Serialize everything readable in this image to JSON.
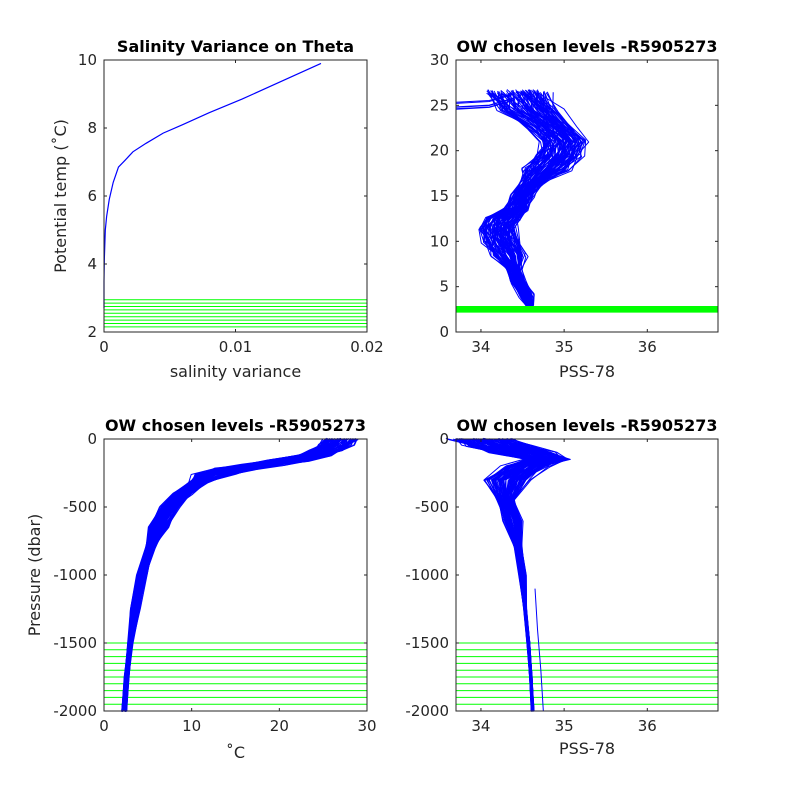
{
  "colors": {
    "profile": "#0000ff",
    "levels": "#00ff00",
    "axis": "#262626",
    "background": "#ffffff"
  },
  "chart_data": [
    {
      "id": "p1",
      "type": "line",
      "title": "Salinity Variance on Theta",
      "xlabel": "salinity variance",
      "ylabel": "Potential temp (˚C)",
      "xlim": [
        0,
        0.02
      ],
      "ylim": [
        2,
        10
      ],
      "xticks": [
        0,
        0.01,
        0.02
      ],
      "xtick_labels": [
        "0",
        "0.01",
        "0.02"
      ],
      "yticks": [
        2,
        4,
        6,
        8,
        10
      ],
      "ytick_labels": [
        "2",
        "4",
        "6",
        "8",
        "10"
      ],
      "series": [
        {
          "x": [
            0.0,
            0.0,
            3e-05,
            0.0001,
            0.0002,
            0.0004,
            0.0007,
            0.0011,
            0.0016,
            0.0022,
            0.0032,
            0.0045,
            0.006,
            0.008,
            0.0105,
            0.0125,
            0.0145,
            0.0165
          ],
          "y": [
            2.7,
            3.5,
            4.2,
            5.0,
            5.4,
            5.9,
            6.4,
            6.85,
            7.05,
            7.3,
            7.55,
            7.85,
            8.1,
            8.45,
            8.85,
            9.2,
            9.55,
            9.9
          ]
        }
      ],
      "levels": [
        2.15,
        2.25,
        2.35,
        2.45,
        2.55,
        2.65,
        2.75,
        2.85,
        2.95
      ]
    },
    {
      "id": "p2",
      "type": "line",
      "title": "OW chosen levels -R5905273",
      "xlabel": "PSS-78",
      "ylabel": "",
      "xlim": [
        33.7,
        36.85
      ],
      "ylim": [
        0,
        30
      ],
      "xticks": [
        34,
        35,
        36
      ],
      "xtick_labels": [
        "34",
        "35",
        "36"
      ],
      "yticks": [
        0,
        5,
        10,
        15,
        20,
        25,
        30
      ],
      "ytick_labels": [
        "0",
        "5",
        "10",
        "15",
        "20",
        "25",
        "30"
      ],
      "mean_profile": {
        "x": [
          34.6,
          34.55,
          34.45,
          34.4,
          34.35,
          34.25,
          34.22,
          34.28,
          34.42,
          34.5,
          34.62,
          34.8,
          34.95,
          35.0,
          34.85,
          34.6,
          34.45
        ],
        "y": [
          2.7,
          4.0,
          5.5,
          7.0,
          8.5,
          10.0,
          11.5,
          12.5,
          13.5,
          15.0,
          16.5,
          18.0,
          19.5,
          21.0,
          22.5,
          24.5,
          26.5
        ]
      },
      "levels": [
        2.3,
        2.5,
        2.7
      ]
    },
    {
      "id": "p3",
      "type": "line",
      "title": "OW chosen levels -R5905273",
      "xlabel": "˚C",
      "ylabel": "Pressure (dbar)",
      "xlim": [
        0,
        30
      ],
      "ylim": [
        -2000,
        0
      ],
      "xticks": [
        0,
        10,
        20,
        30
      ],
      "xtick_labels": [
        "0",
        "10",
        "20",
        "30"
      ],
      "yticks": [
        -2000,
        -1500,
        -1000,
        -500,
        0
      ],
      "ytick_labels": [
        "-2000",
        "-1500",
        "-1000",
        "-500",
        "0"
      ],
      "mean_profile": {
        "x": [
          2.3,
          2.6,
          3.0,
          3.6,
          4.3,
          5.2,
          6.2,
          7.5,
          9.0,
          10.8,
          12.5,
          15.0,
          18.0,
          21.0,
          24.0,
          25.5,
          26.5,
          27.0
        ],
        "y": [
          -2000,
          -1750,
          -1500,
          -1250,
          -1000,
          -800,
          -650,
          -500,
          -400,
          -320,
          -260,
          -220,
          -190,
          -160,
          -120,
          -80,
          -40,
          0
        ]
      },
      "levels": [
        -1500,
        -1550,
        -1600,
        -1650,
        -1700,
        -1750,
        -1800,
        -1850,
        -1900,
        -1950,
        -2000
      ]
    },
    {
      "id": "p4",
      "type": "line",
      "title": "OW chosen levels -R5905273",
      "xlabel": "PSS-78",
      "ylabel": "",
      "xlim": [
        33.7,
        36.85
      ],
      "ylim": [
        -2000,
        0
      ],
      "xticks": [
        34,
        35,
        36
      ],
      "xtick_labels": [
        "34",
        "35",
        "36"
      ],
      "yticks": [
        -2000,
        -1500,
        -1000,
        -500,
        0
      ],
      "ytick_labels": [
        "-2000",
        "-1500",
        "-1000",
        "-500",
        "0"
      ],
      "mean_profile": {
        "x": [
          34.62,
          34.6,
          34.57,
          34.53,
          34.5,
          34.45,
          34.38,
          34.3,
          34.32,
          34.55,
          34.8,
          34.5,
          34.2,
          34.0
        ],
        "y": [
          -2000,
          -1750,
          -1500,
          -1250,
          -1000,
          -800,
          -600,
          -450,
          -300,
          -200,
          -150,
          -100,
          -50,
          0
        ]
      },
      "outlier": {
        "x": [
          34.65,
          34.68,
          34.72,
          34.75
        ],
        "y": [
          -1100,
          -1400,
          -1700,
          -2000
        ]
      },
      "levels": [
        -1500,
        -1550,
        -1600,
        -1650,
        -1700,
        -1750,
        -1800,
        -1850,
        -1900,
        -1950,
        -2000
      ]
    }
  ]
}
